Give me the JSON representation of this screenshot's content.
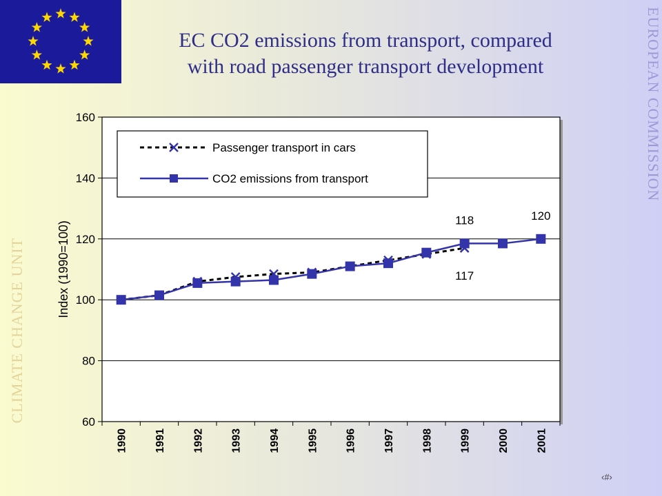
{
  "title_line1": "EC CO2 emissions from transport, compared",
  "title_line2": "with road passenger transport development",
  "side_right_text": "EUROPEAN COMMISSION",
  "side_left_text": "CLIMATE CHANGE UNIT",
  "page_number": "‹#›",
  "colors": {
    "title": "#2e2e86",
    "series": "#3333aa",
    "flag_blue": "#1a1a9a",
    "flag_star": "#ffd700"
  },
  "chart_data": {
    "type": "line",
    "ylabel": "Index (1990=100)",
    "ylim": [
      60,
      160
    ],
    "yticks": [
      60,
      80,
      100,
      120,
      140,
      160
    ],
    "categories": [
      "1990",
      "1991",
      "1992",
      "1993",
      "1994",
      "1995",
      "1996",
      "1997",
      "1998",
      "1999",
      "2000",
      "2001"
    ],
    "grid": true,
    "legend_position": "top-left",
    "series": [
      {
        "name": "Passenger transport in cars",
        "values": [
          100,
          101.5,
          106,
          107.5,
          108.5,
          109,
          111,
          113,
          115,
          117,
          null,
          null
        ],
        "style": "dashed",
        "marker": "x"
      },
      {
        "name": "CO2 emissions from transport",
        "values": [
          100,
          101.5,
          105.5,
          106,
          106.5,
          108.5,
          111,
          112,
          115.5,
          118.5,
          118.5,
          120
        ],
        "style": "solid",
        "marker": "square"
      }
    ],
    "annotations": [
      {
        "text": "118",
        "category": "1999",
        "value": 118.5,
        "position": "above"
      },
      {
        "text": "117",
        "category": "1999",
        "value": 117,
        "position": "below"
      },
      {
        "text": "120",
        "category": "2001",
        "value": 120,
        "position": "above"
      }
    ]
  }
}
